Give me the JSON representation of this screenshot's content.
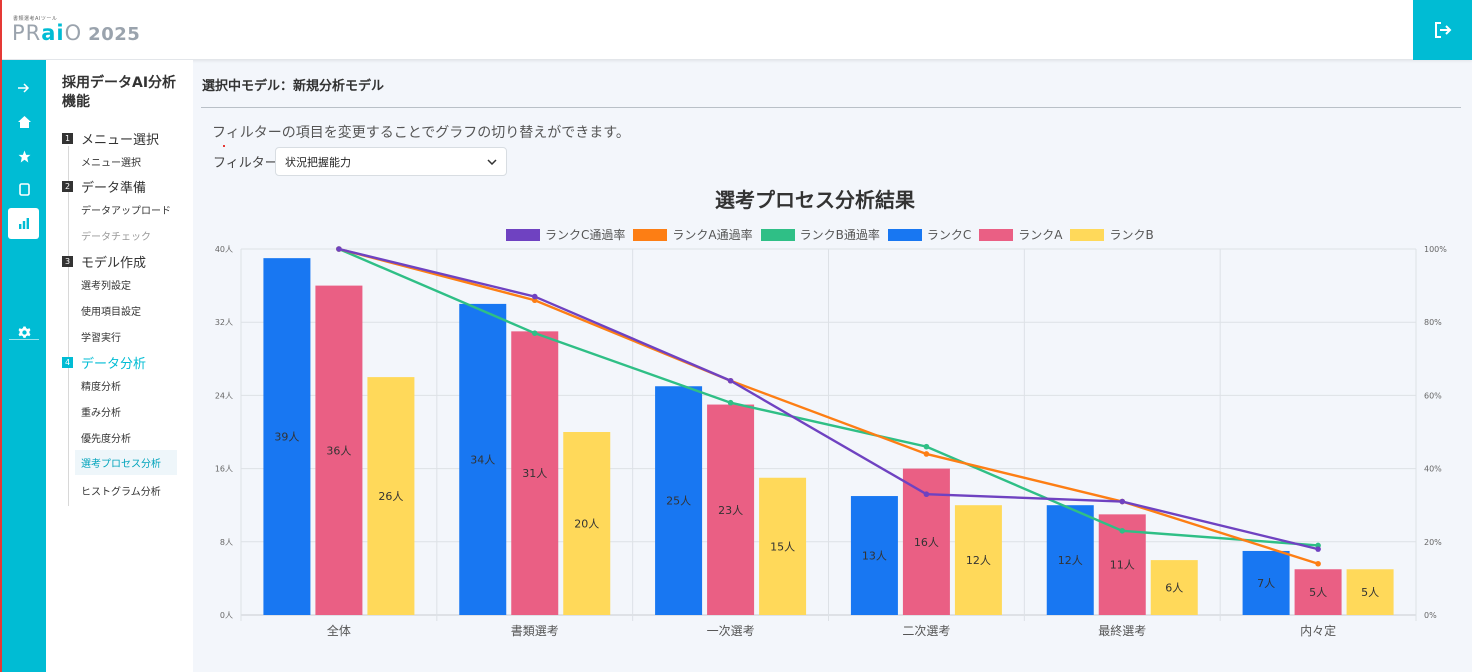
{
  "header": {
    "logo_sub": "書類選考AIツール",
    "logo_pr": "PR",
    "logo_ai": "ai",
    "logo_o": "O",
    "logo_year": "2025"
  },
  "rail": {
    "icons": [
      "arrow-right-icon",
      "home-icon",
      "star-icon",
      "document-icon",
      "bar-chart-icon",
      "gear-icon"
    ]
  },
  "sidebar": {
    "title": "採用データAI分析機能",
    "sections": [
      {
        "num": "1",
        "label": "メニュー選択",
        "items": [
          "メニュー選択"
        ]
      },
      {
        "num": "2",
        "label": "データ準備",
        "items": [
          "データアップロード",
          "データチェック"
        ]
      },
      {
        "num": "3",
        "label": "モデル作成",
        "items": [
          "選考列設定",
          "使用項目設定",
          "学習実行"
        ]
      },
      {
        "num": "4",
        "label": "データ分析",
        "items": [
          "精度分析",
          "重み分析",
          "優先度分析",
          "選考プロセス分析",
          "ヒストグラム分析"
        ]
      }
    ]
  },
  "main": {
    "title": "選択中モデル：新規分析モデル",
    "description": "フィルターの項目を変更することでグラフの切り替えができます。",
    "filter_label": "フィルター",
    "filter_value": "状況把握能力"
  },
  "chart_data": {
    "type": "bar",
    "title": "選考プロセス分析結果",
    "categories": [
      "全体",
      "書類選考",
      "一次選考",
      "二次選考",
      "最終選考",
      "内々定"
    ],
    "y_left": {
      "min": 0,
      "max": 40,
      "ticks": [
        0,
        8,
        16,
        24,
        32,
        40
      ],
      "tick_labels": [
        "0人",
        "8人",
        "16人",
        "24人",
        "32人",
        "40人"
      ]
    },
    "y_right": {
      "min": 0,
      "max": 100,
      "ticks": [
        0,
        20,
        40,
        60,
        80,
        100
      ],
      "tick_labels": [
        "0%",
        "20%",
        "40%",
        "60%",
        "80%",
        "100%"
      ]
    },
    "legend_position": "top",
    "grid": true,
    "bar_series": [
      {
        "name": "ランクC",
        "color": "#1877f2",
        "values": [
          39,
          34,
          25,
          13,
          12,
          7
        ],
        "labels": [
          "39人",
          "34人",
          "25人",
          "13人",
          "12人",
          "7人"
        ]
      },
      {
        "name": "ランクA",
        "color": "#ea5f84",
        "values": [
          36,
          31,
          23,
          16,
          11,
          5
        ],
        "labels": [
          "36人",
          "31人",
          "23人",
          "16人",
          "11人",
          "5人"
        ]
      },
      {
        "name": "ランクB",
        "color": "#ffd95a",
        "values": [
          26,
          20,
          15,
          12,
          6,
          5
        ],
        "labels": [
          "26人",
          "20人",
          "15人",
          "12人",
          "6人",
          "5人"
        ]
      }
    ],
    "line_series": [
      {
        "name": "ランクC通過率",
        "color": "#6f42c1",
        "values": [
          100,
          87,
          64,
          33,
          31,
          18
        ]
      },
      {
        "name": "ランクA通過率",
        "color": "#fd7e14",
        "values": [
          100,
          86,
          64,
          44,
          31,
          14
        ]
      },
      {
        "name": "ランクB通過率",
        "color": "#2fbf86",
        "values": [
          100,
          77,
          58,
          46,
          23,
          19
        ]
      }
    ],
    "legend_order": [
      "ランクC通過率",
      "ランクA通過率",
      "ランクB通過率",
      "ランクC",
      "ランクA",
      "ランクB"
    ]
  }
}
